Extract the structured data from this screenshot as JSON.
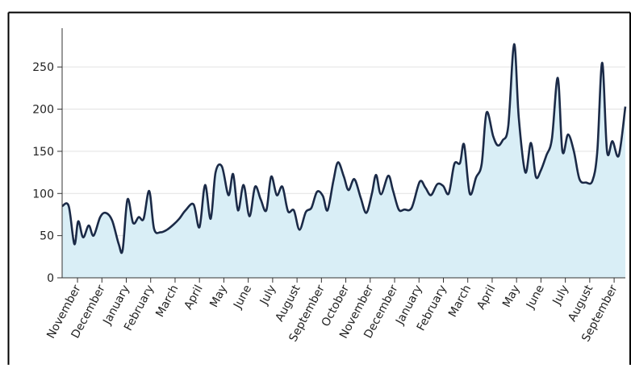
{
  "chart_data": {
    "type": "area",
    "x": [
      0.37,
      0.64,
      0.87,
      1.03,
      1.23,
      1.46,
      1.66,
      1.93,
      2.16,
      2.42,
      2.69,
      2.85,
      3.05,
      3.28,
      3.51,
      3.71,
      3.94,
      4.14,
      4.41,
      4.67,
      4.93,
      5.17,
      5.43,
      5.76,
      6.0,
      6.23,
      6.46,
      6.66,
      6.92,
      7.19,
      7.38,
      7.58,
      7.81,
      8.05,
      8.28,
      8.51,
      8.74,
      8.94,
      9.17,
      9.4,
      9.63,
      9.87,
      10.1,
      10.36,
      10.59,
      10.82,
      11.06,
      11.25,
      11.49,
      11.68,
      11.92,
      12.11,
      12.35,
      12.61,
      12.84,
      13.07,
      13.24,
      13.44,
      13.74,
      13.93,
      14.17,
      14.4,
      14.7,
      15.03,
      15.26,
      15.49,
      15.75,
      15.99,
      16.22,
      16.45,
      16.68,
      16.85,
      17.08,
      17.34,
      17.57,
      17.77,
      18.04,
      18.23,
      18.43,
      18.66,
      18.9,
      19.09,
      19.36,
      19.59,
      19.79,
      19.99,
      20.22,
      20.45,
      20.69,
      20.88,
      21.11,
      21.35,
      21.58,
      21.85,
      22.11,
      22.31,
      22.51,
      22.71,
      22.93,
      23.19,
      23.46
    ],
    "values": [
      85,
      85,
      40,
      67,
      48,
      62,
      50,
      72,
      77,
      68,
      40,
      33,
      93,
      65,
      72,
      70,
      103,
      58,
      54,
      57,
      63,
      70,
      80,
      87,
      60,
      110,
      70,
      125,
      132,
      98,
      123,
      80,
      110,
      73,
      108,
      93,
      80,
      120,
      98,
      108,
      79,
      80,
      57,
      78,
      83,
      102,
      97,
      80,
      115,
      137,
      120,
      104,
      117,
      95,
      77,
      100,
      122,
      99,
      121,
      104,
      81,
      81,
      83,
      114,
      107,
      98,
      111,
      109,
      100,
      135,
      136,
      158,
      100,
      119,
      135,
      196,
      168,
      157,
      163,
      180,
      277,
      190,
      125,
      160,
      120,
      127,
      145,
      165,
      237,
      150,
      170,
      150,
      117,
      113,
      115,
      150,
      255,
      150,
      162,
      145,
      203
    ],
    "color": "#1b2a47",
    "fill": "#d9eef6",
    "xlim": [
      0.37,
      23.46
    ],
    "xticks": [
      {
        "value": 1,
        "label": "November"
      },
      {
        "value": 2,
        "label": "December"
      },
      {
        "value": 3,
        "label": "January"
      },
      {
        "value": 4,
        "label": "February"
      },
      {
        "value": 5,
        "label": "March"
      },
      {
        "value": 6,
        "label": "April"
      },
      {
        "value": 7,
        "label": "May"
      },
      {
        "value": 8,
        "label": "June"
      },
      {
        "value": 9,
        "label": "July"
      },
      {
        "value": 10,
        "label": "August"
      },
      {
        "value": 11,
        "label": "September"
      },
      {
        "value": 12,
        "label": "October"
      },
      {
        "value": 13,
        "label": "November"
      },
      {
        "value": 14,
        "label": "December"
      },
      {
        "value": 15,
        "label": "January"
      },
      {
        "value": 16,
        "label": "February"
      },
      {
        "value": 17,
        "label": "March"
      },
      {
        "value": 18,
        "label": "April"
      },
      {
        "value": 19,
        "label": "May"
      },
      {
        "value": 20,
        "label": "June"
      },
      {
        "value": 21,
        "label": "July"
      },
      {
        "value": 22,
        "label": "August"
      },
      {
        "value": 23,
        "label": "September"
      }
    ],
    "ylim": [
      0,
      296
    ],
    "yticks": [
      0,
      50,
      100,
      150,
      200,
      250
    ],
    "grid": true
  }
}
